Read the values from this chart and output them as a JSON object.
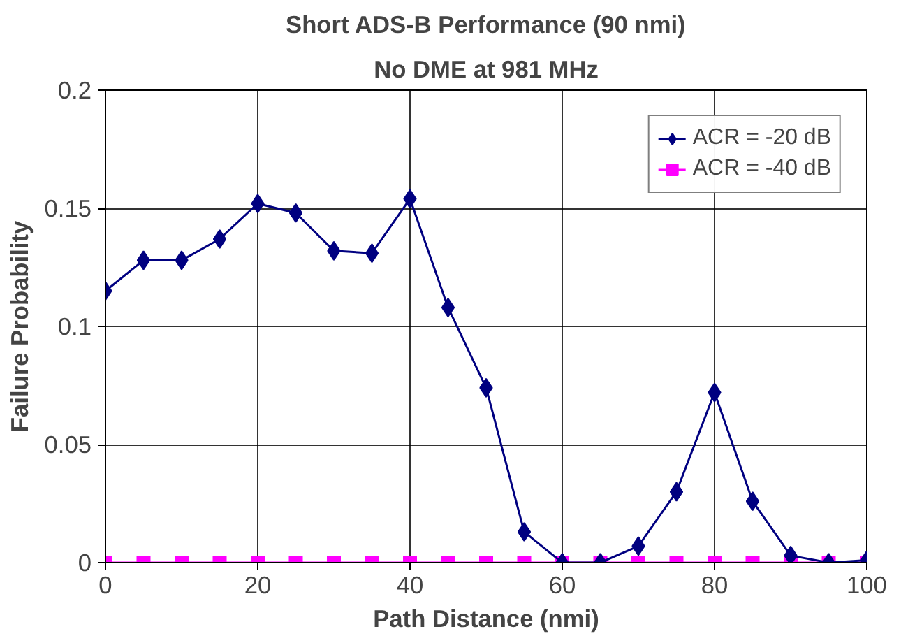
{
  "chart_data": {
    "type": "line",
    "title": "Short ADS-B Performance (90 nmi)",
    "subtitle": "No DME at 981 MHz",
    "xlabel": "Path Distance (nmi)",
    "ylabel": "Failure Probability",
    "x": [
      0,
      5,
      10,
      15,
      20,
      25,
      30,
      35,
      40,
      45,
      50,
      55,
      60,
      65,
      70,
      75,
      80,
      85,
      90,
      95,
      100
    ],
    "series": [
      {
        "name": "ACR = -20 dB",
        "color": "#000080",
        "marker": "diamond",
        "values": [
          0.115,
          0.128,
          0.128,
          0.137,
          0.152,
          0.148,
          0.132,
          0.131,
          0.154,
          0.108,
          0.074,
          0.013,
          0,
          0,
          0.007,
          0.03,
          0.072,
          0.026,
          0.003,
          0,
          0.001
        ]
      },
      {
        "name": "ACR = -40 dB",
        "color": "#ff00ff",
        "marker": "square",
        "values": [
          0,
          0,
          0,
          0,
          0,
          0,
          0,
          0,
          0,
          0,
          0,
          0,
          0,
          0,
          0,
          0,
          0,
          0,
          0,
          0,
          0
        ]
      }
    ],
    "xlim": [
      0,
      100
    ],
    "xticks": [
      0,
      20,
      40,
      60,
      80,
      100
    ],
    "ylim": [
      0,
      0.2
    ],
    "yticks": [
      0,
      0.05,
      0.1,
      0.15,
      0.2
    ],
    "grid": true,
    "legend": "top right",
    "line_style": "solid"
  }
}
